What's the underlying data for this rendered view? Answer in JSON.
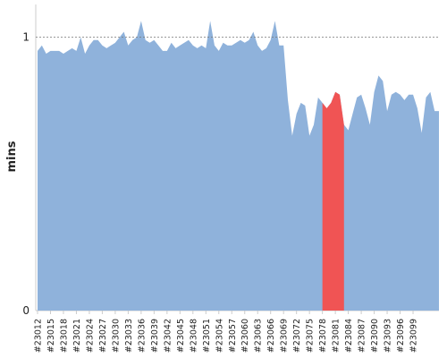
{
  "chart_data": {
    "type": "area",
    "ylabel": "mins",
    "ylim": [
      0,
      1.12
    ],
    "y_ticks": [
      {
        "value": 0,
        "label": "0"
      },
      {
        "value": 1,
        "label": "1"
      }
    ],
    "reference_line": {
      "value": 1,
      "style": "dotted"
    },
    "x_tick_labels": [
      "#23012",
      "#23015",
      "#23018",
      "#23021",
      "#23024",
      "#23027",
      "#23030",
      "#23033",
      "#23036",
      "#23039",
      "#23042",
      "#23045",
      "#23048",
      "#23051",
      "#23054",
      "#23057",
      "#23060",
      "#23063",
      "#23066",
      "#23069",
      "#23072",
      "#23075",
      "#23078",
      "#23081",
      "#23084",
      "#23087",
      "#23090",
      "#23093",
      "#23096",
      "#23099"
    ],
    "series": [
      {
        "color": "#8fb2db",
        "values": [
          0.95,
          0.97,
          0.94,
          0.95,
          0.95,
          0.95,
          0.94,
          0.95,
          0.96,
          0.95,
          1.0,
          0.94,
          0.97,
          0.99,
          0.99,
          0.97,
          0.96,
          0.97,
          0.98,
          1.0,
          1.02,
          0.97,
          0.99,
          1.0,
          1.06,
          0.99,
          0.98,
          0.99,
          0.97,
          0.95,
          0.95,
          0.98,
          0.96,
          0.97,
          0.98,
          0.99,
          0.97,
          0.96,
          0.97,
          0.96,
          1.06,
          0.97,
          0.95,
          0.98,
          0.97,
          0.97,
          0.98,
          0.99,
          0.98,
          0.99,
          1.02,
          0.97,
          0.95,
          0.96,
          0.99,
          1.06,
          0.97,
          0.97,
          0.77,
          0.64,
          0.72,
          0.76,
          0.75,
          0.64,
          0.68,
          0.78,
          0.76,
          0.74,
          0.76,
          0.8,
          0.79,
          0.68,
          0.66,
          0.72,
          0.78,
          0.79,
          0.74,
          0.68,
          0.8,
          0.86,
          0.84,
          0.73,
          0.79,
          0.8,
          0.79,
          0.77,
          0.79,
          0.79,
          0.74,
          0.65,
          0.78,
          0.8,
          0.73,
          0.73
        ]
      }
    ],
    "highlight": {
      "color": "#f05454",
      "start_index": 66,
      "end_index": 71
    }
  }
}
